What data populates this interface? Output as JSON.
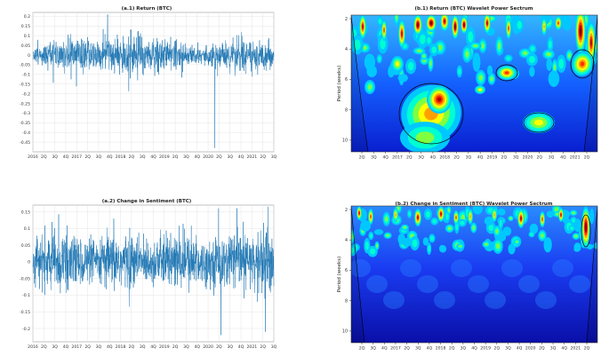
{
  "panels": {
    "a1": {
      "title": "(a.1)  Return (BTC)",
      "yticks": [
        "0.2",
        "0.15",
        "0.1",
        "0.05",
        "0",
        "-0.05",
        "-0.1",
        "-0.15",
        "-0.2",
        "-0.25",
        "-0.3",
        "-0.35",
        "-0.4",
        "-0.45"
      ],
      "xticks": [
        "2016",
        "2Q",
        "3Q",
        "4Q",
        "2017",
        "2Q",
        "3Q",
        "4Q",
        "2018",
        "2Q",
        "3Q",
        "4Q",
        "2019",
        "2Q",
        "3Q",
        "4Q",
        "2020",
        "2Q",
        "3Q",
        "4Q",
        "2021",
        "2Q",
        "3Q"
      ]
    },
    "a2": {
      "title": "(a.2)  Change in Sentiment (BTC)",
      "yticks": [
        "0.15",
        "0.1",
        "0.05",
        "0",
        "-0.05",
        "-0.1",
        "-0.15",
        "-0.2"
      ],
      "xticks": [
        "2016",
        "2Q",
        "3Q",
        "4Q",
        "2017",
        "2Q",
        "3Q",
        "4Q",
        "2018",
        "2Q",
        "3Q",
        "4Q",
        "2019",
        "2Q",
        "3Q",
        "4Q",
        "2020",
        "2Q",
        "3Q",
        "4Q",
        "2021",
        "2Q",
        "3Q"
      ]
    },
    "b1": {
      "title": "(b.1)  Return (BTC) Wavelet Power Sectrum",
      "ylabel": "Period (weeks)",
      "yticks": [
        "2",
        "4",
        "6",
        "8",
        "10"
      ],
      "xticks": [
        "2Q",
        "3Q",
        "4Q",
        "2017",
        "2Q",
        "3Q",
        "4Q",
        "2018",
        "2Q",
        "3Q",
        "4Q",
        "2019",
        "2Q",
        "3Q",
        "2020",
        "2Q",
        "3Q",
        "4Q",
        "2021",
        "2Q"
      ]
    },
    "b2": {
      "title": "(b.2)  Change in Sentiment (BTC) Wavelet Power Sectrum",
      "ylabel": "Period (weeks)",
      "yticks": [
        "2",
        "4",
        "6",
        "8",
        "10"
      ],
      "xticks": [
        "2Q",
        "3Q",
        "4Q",
        "2017",
        "2Q",
        "3Q",
        "4Q",
        "2018",
        "2Q",
        "3Q",
        "4Q",
        "2019",
        "2Q",
        "3Q",
        "4Q",
        "2020",
        "2Q",
        "3Q",
        "4Q",
        "2021",
        "2Q"
      ]
    }
  },
  "chart_data": [
    {
      "type": "line",
      "title": "(a.1)  Return (BTC)",
      "x_range": [
        "2016",
        "3Q 2021"
      ],
      "ylim": [
        -0.5,
        0.22
      ],
      "grid": true,
      "series": [
        {
          "values_summary": "daily returns mostly between -0.15 and 0.15, one large negative spike near -0.48 around 2020",
          "color": "#1f77b4"
        }
      ]
    },
    {
      "type": "line",
      "title": "(a.2)  Change in Sentiment (BTC)",
      "x_range": [
        "2016",
        "3Q 2021"
      ],
      "ylim": [
        -0.24,
        0.17
      ],
      "grid": true,
      "series": [
        {
          "values_summary": "daily changes mostly between -0.1 and 0.1, spikes near 0.16 and -0.22",
          "color": "#1f77b4"
        }
      ]
    },
    {
      "type": "heatmap",
      "title": "(b.1)  Return (BTC) Wavelet Power Sectrum",
      "ylabel": "Period (weeks)",
      "ylim": [
        2,
        11
      ],
      "colormap": "jet",
      "hotspots": [
        {
          "x": "3Q 2017",
          "period": 2.5,
          "power": "high"
        },
        {
          "x": "2018",
          "period": 8.5,
          "power": "high"
        },
        {
          "x": "3Q 2019",
          "period": 6,
          "power": "high"
        },
        {
          "x": "2021",
          "period": 5,
          "power": "high"
        }
      ]
    },
    {
      "type": "heatmap",
      "title": "(b.2)  Change in Sentiment (BTC) Wavelet Power Sectrum",
      "ylabel": "Period (weeks)",
      "ylim": [
        2,
        11
      ],
      "colormap": "jet",
      "hotspots": [
        {
          "x": "3Q 2017",
          "period": 2.5,
          "power": "high"
        },
        {
          "x": "2021",
          "period": 3.5,
          "power": "high"
        }
      ]
    }
  ]
}
